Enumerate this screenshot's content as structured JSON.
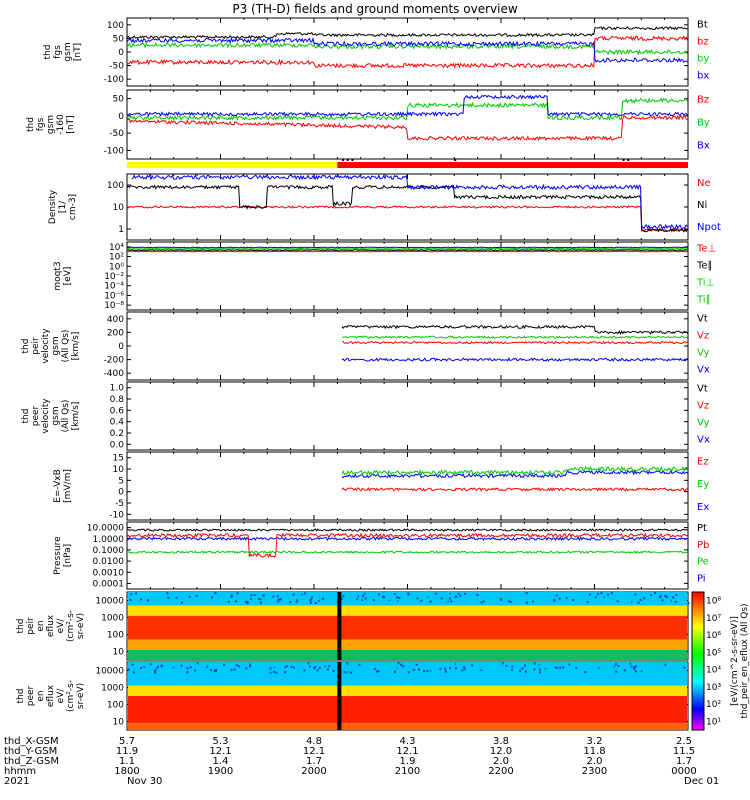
{
  "title": "P3 (TH-D) fields and ground moments overview",
  "colors": {
    "black": "#000000",
    "red": "#ff0000",
    "green": "#00cc00",
    "blue": "#0000ff",
    "yellow": "#ffff00"
  },
  "panels": [
    {
      "id": "fgs",
      "ylabel": [
        "thd",
        "fgs",
        "gsm",
        "[nT]"
      ],
      "yticks": [
        "100",
        "50",
        "0",
        "-50",
        "-100"
      ],
      "legend": [
        [
          "Bt",
          "black"
        ],
        [
          "bz",
          "red"
        ],
        [
          "by",
          "green"
        ],
        [
          "bx",
          "blue"
        ]
      ]
    },
    {
      "id": "fgs-lt",
      "ylabel": [
        "thd",
        "fgs",
        "gsm",
        "-160",
        "[nT]"
      ],
      "yticks": [
        "50",
        "0",
        "-50",
        "-100"
      ],
      "legend": [
        [
          "Bz",
          "red"
        ],
        [
          "By",
          "green"
        ],
        [
          "Bx",
          "blue"
        ]
      ]
    },
    {
      "id": "density",
      "ylabel": [
        "Density",
        "[1/",
        "cm-3]"
      ],
      "yticks": [
        "100",
        "10",
        "1"
      ],
      "legend": [
        [
          "Ne",
          "red"
        ],
        [
          "Ni",
          "black"
        ],
        [
          "Npot",
          "blue"
        ]
      ]
    },
    {
      "id": "temp",
      "ylabel": [
        "moqt3",
        "[eV]"
      ],
      "yticks": [
        "10⁴",
        "10²",
        "10⁰",
        "10⁻²",
        "10⁻⁴",
        "10⁻⁶",
        "10⁻⁸"
      ],
      "legend": [
        [
          "Te⊥",
          "red"
        ],
        [
          "Te∥",
          "black"
        ],
        [
          "Ti⊥",
          "green"
        ],
        [
          "Ti∥",
          "green"
        ]
      ]
    },
    {
      "id": "peir-vel",
      "ylabel": [
        "thd",
        "peir",
        "velocity",
        "gsm",
        "(All Qs)",
        "[km/s]"
      ],
      "yticks": [
        "400",
        "200",
        "0",
        "-200",
        "-400"
      ],
      "legend": [
        [
          "Vt",
          "black"
        ],
        [
          "Vz",
          "red"
        ],
        [
          "Vy",
          "green"
        ],
        [
          "Vx",
          "blue"
        ]
      ]
    },
    {
      "id": "peer-vel",
      "ylabel": [
        "thd",
        "peer",
        "velocity",
        "gsm",
        "(All Qs)",
        "[km/s]"
      ],
      "yticks": [
        "1.0",
        "0.8",
        "0.6",
        "0.4",
        "0.2",
        "0.0"
      ],
      "legend": [
        [
          "Vt",
          "black"
        ],
        [
          "Vz",
          "red"
        ],
        [
          "Vy",
          "green"
        ],
        [
          "Vx",
          "blue"
        ]
      ]
    },
    {
      "id": "efield",
      "ylabel": [
        "E=-VxB",
        "[mV/m]"
      ],
      "yticks": [
        "15",
        "10",
        "5",
        "0",
        "-5",
        "-10"
      ],
      "legend": [
        [
          "Ez",
          "red"
        ],
        [
          "Ey",
          "green"
        ],
        [
          "Ex",
          "blue"
        ]
      ]
    },
    {
      "id": "pressure",
      "ylabel": [
        "Pressure",
        "[nPa]"
      ],
      "yticks": [
        "10.0000",
        "1.0000",
        "0.1000",
        "0.0100",
        "0.0010",
        "0.0001"
      ],
      "legend": [
        [
          "Pt",
          "black"
        ],
        [
          "Pb",
          "red"
        ],
        [
          "Pe",
          "green"
        ],
        [
          "Pi",
          "blue"
        ]
      ]
    },
    {
      "id": "peir-en",
      "ylabel": [
        "thd",
        "peir",
        "en",
        "eflux",
        "eV/",
        "(cm²-s-",
        "sr-eV)"
      ],
      "yticks": [
        "10000",
        "1000",
        "100",
        "10"
      ]
    },
    {
      "id": "peer-en",
      "ylabel": [
        "thd",
        "peer",
        "en",
        "eflux",
        "eV/",
        "(cm²-s-",
        "sr-eV)"
      ],
      "yticks": [
        "10000",
        "1000",
        "100",
        "10"
      ]
    }
  ],
  "colorbar": {
    "label": "[eV/(cm^2-s-sr-eV)]",
    "label2": "thd_peir_en_eflux (All Qs)",
    "ticks": [
      "10⁸",
      "10⁷",
      "10⁶",
      "10⁵",
      "10⁴",
      "10³",
      "10²",
      "10¹"
    ]
  },
  "xaxis": {
    "row_labels": [
      "thd_X-GSM",
      "thd_Y-GSM",
      "thd_Z-GSM",
      "hhmm",
      "2021"
    ],
    "columns": [
      [
        "5.7",
        "11.9",
        "1.1",
        "1800",
        "Nov 30"
      ],
      [
        "5.3",
        "12.1",
        "1.4",
        "1900",
        ""
      ],
      [
        "4.8",
        "12.1",
        "1.7",
        "2000",
        ""
      ],
      [
        "4.3",
        "12.1",
        "1.9",
        "2100",
        ""
      ],
      [
        "3.8",
        "12.0",
        "2.0",
        "2200",
        ""
      ],
      [
        "3.2",
        "11.8",
        "2.0",
        "2300",
        ""
      ],
      [
        "2.5",
        "11.5",
        "1.7",
        "0000",
        "Dec 01"
      ]
    ]
  },
  "chart_data": [
    {
      "type": "line",
      "title": "P3 (TH-D) fields and ground moments overview",
      "xlabel": "hhmm",
      "ylabel": "thd fgs gsm [nT]",
      "ylim": [
        -100,
        100
      ],
      "x": [
        "1800",
        "1900",
        "2000",
        "2100",
        "2200",
        "2300",
        "0000"
      ],
      "series": [
        {
          "name": "Bt",
          "values": [
            35,
            35,
            30,
            40,
            40,
            45,
            60
          ]
        },
        {
          "name": "bz",
          "values": [
            -20,
            -25,
            -5,
            -30,
            -30,
            -35,
            30
          ]
        },
        {
          "name": "by",
          "values": [
            15,
            15,
            10,
            10,
            10,
            15,
            5
          ]
        },
        {
          "name": "bx",
          "values": [
            25,
            25,
            20,
            30,
            20,
            10,
            -10
          ]
        }
      ]
    },
    {
      "type": "line",
      "ylabel": "thd fgs gsm -160 [nT]",
      "ylim": [
        -120,
        50
      ],
      "x": [
        "1800",
        "1900",
        "2000",
        "2100",
        "2200",
        "2300",
        "0000"
      ],
      "series": [
        {
          "name": "Bz",
          "values": [
            -20,
            -30,
            -30,
            -60,
            -75,
            -75,
            -20
          ]
        },
        {
          "name": "By",
          "values": [
            -10,
            -15,
            -15,
            5,
            10,
            -15,
            30
          ]
        },
        {
          "name": "Bx",
          "values": [
            -10,
            -10,
            -10,
            -10,
            30,
            30,
            10
          ]
        }
      ]
    },
    {
      "type": "line",
      "ylabel": "Density [1/cm-3]",
      "ylim": [
        1,
        200
      ],
      "x": [
        "1800",
        "1900",
        "2000",
        "2100",
        "2200",
        "2300",
        "0000"
      ],
      "series": [
        {
          "name": "Ne",
          "values": [
            10,
            10,
            9,
            10,
            12,
            10,
            2
          ]
        },
        {
          "name": "Ni",
          "values": [
            55,
            55,
            50,
            60,
            30,
            40,
            2
          ]
        },
        {
          "name": "Npot",
          "values": [
            150,
            150,
            120,
            70,
            65,
            60,
            2
          ]
        }
      ]
    },
    {
      "type": "line",
      "ylabel": "[eV]",
      "ylim": [
        1e-08,
        10000
      ],
      "x": [
        "1800",
        "1900",
        "2000",
        "2100",
        "2200",
        "2300",
        "0000"
      ],
      "series": [
        {
          "name": "Te⊥",
          "values": [
            100,
            100,
            100,
            100,
            100,
            100,
            100
          ]
        },
        {
          "name": "Te∥",
          "values": [
            200,
            200,
            200,
            200,
            200,
            200,
            200
          ]
        },
        {
          "name": "Ti⊥",
          "values": [
            500,
            500,
            500,
            500,
            500,
            500,
            500
          ]
        },
        {
          "name": "Ti∥",
          "values": [
            800,
            800,
            800,
            800,
            800,
            800,
            800
          ]
        }
      ]
    },
    {
      "type": "line",
      "ylabel": "thd peir velocity gsm (All Qs) [km/s]",
      "ylim": [
        -400,
        400
      ],
      "x": [
        "2040",
        "2100",
        "2200",
        "2300",
        "0000"
      ],
      "series": [
        {
          "name": "Vt",
          "values": [
            200,
            230,
            220,
            240,
            80
          ]
        },
        {
          "name": "Vz",
          "values": [
            30,
            40,
            30,
            60,
            20
          ]
        },
        {
          "name": "Vy",
          "values": [
            100,
            110,
            110,
            130,
            40
          ]
        },
        {
          "name": "Vx",
          "values": [
            -150,
            -200,
            -200,
            -210,
            -50
          ]
        }
      ]
    },
    {
      "type": "line",
      "ylabel": "thd peer velocity gsm (All Qs) [km/s]",
      "ylim": [
        0,
        1
      ],
      "series": []
    },
    {
      "type": "line",
      "ylabel": "E=-VxB [mV/m]",
      "ylim": [
        -12,
        15
      ],
      "x": [
        "2040",
        "2100",
        "2200",
        "2300",
        "0000"
      ],
      "series": [
        {
          "name": "Ez",
          "values": [
            1,
            2,
            0,
            2,
            -1
          ]
        },
        {
          "name": "Ey",
          "values": [
            7,
            7,
            4,
            8,
            1
          ]
        },
        {
          "name": "Ex",
          "values": [
            6,
            6,
            3,
            6,
            0
          ]
        }
      ]
    },
    {
      "type": "line",
      "ylabel": "Pressure [nPa]",
      "ylim": [
        0.0001,
        10
      ],
      "x": [
        "1800",
        "1900",
        "2000",
        "2100",
        "2200",
        "2300",
        "0000"
      ],
      "series": [
        {
          "name": "Pt",
          "values": [
            2,
            3,
            3,
            1.5,
            1.5,
            1.5,
            1
          ]
        },
        {
          "name": "Pb",
          "values": [
            1,
            1,
            1,
            1.2,
            1.3,
            1.2,
            0.8
          ]
        },
        {
          "name": "Pe",
          "values": [
            0.05,
            0.06,
            0.05,
            0.05,
            0.06,
            0.08,
            0.1
          ]
        },
        {
          "name": "Pi",
          "values": [
            1.5,
            2,
            2,
            0.5,
            0.8,
            0.8,
            0.5
          ]
        }
      ]
    },
    {
      "type": "heatmap",
      "ylabel": "thd peir en eflux eV/(cm²-s-sr-eV)",
      "ylim": [
        5,
        20000
      ]
    },
    {
      "type": "heatmap",
      "ylabel": "thd peer en eflux eV/(cm²-s-sr-eV)",
      "ylim": [
        5,
        20000
      ]
    }
  ]
}
